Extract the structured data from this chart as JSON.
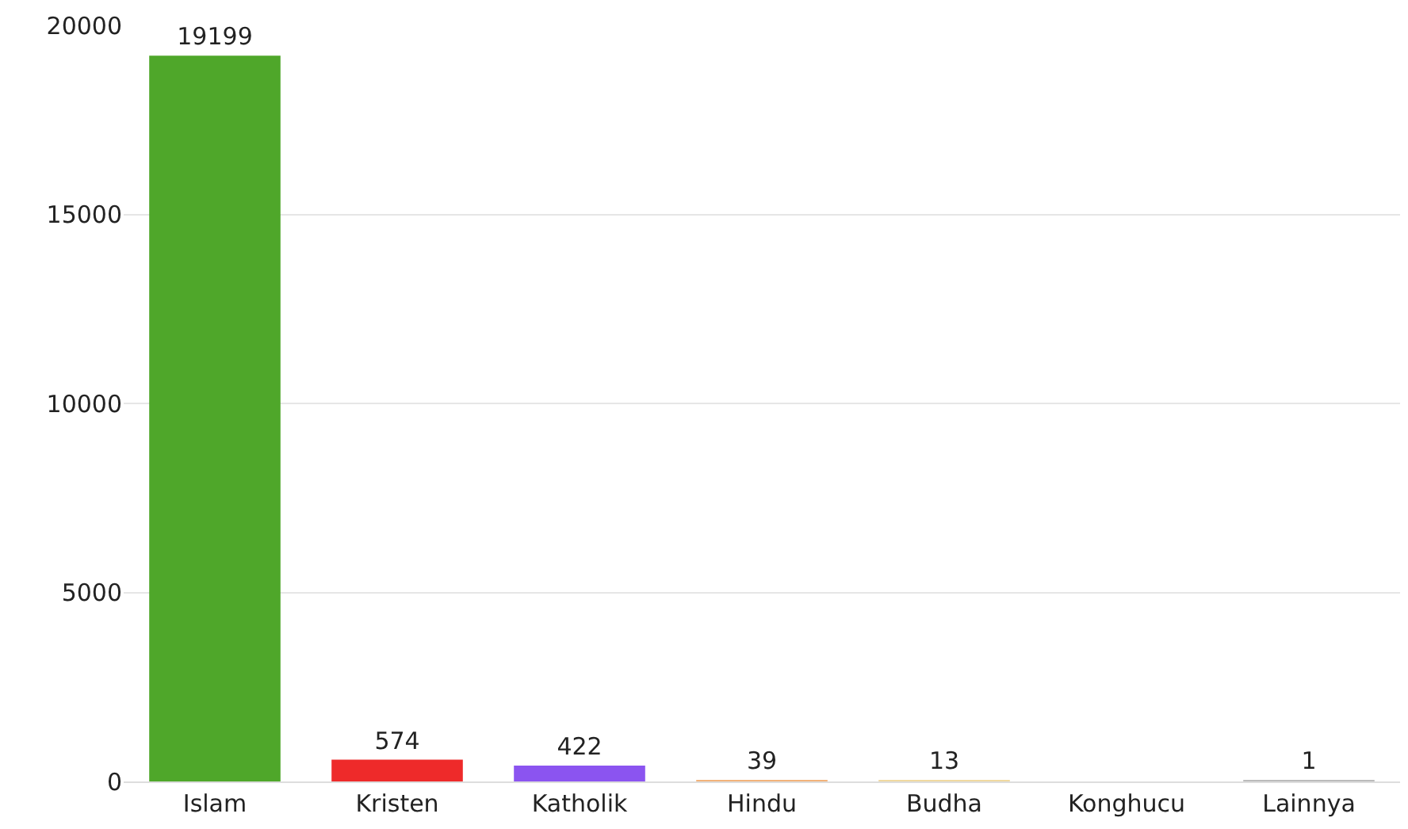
{
  "chart_data": {
    "type": "bar",
    "categories": [
      "Islam",
      "Kristen",
      "Katholik",
      "Hindu",
      "Budha",
      "Konghucu",
      "Lainnya"
    ],
    "values": [
      19199,
      574,
      422,
      39,
      13,
      0,
      1
    ],
    "colors": [
      "#4fa72a",
      "#ee2a2a",
      "#8b54f0",
      "#f2b27a",
      "#f0d9a0",
      "#cccccc",
      "#bbbbbb"
    ],
    "value_labels": [
      "19199",
      "574",
      "422",
      "39",
      "13",
      null,
      "1"
    ],
    "ylim": [
      0,
      20000
    ],
    "yticks": [
      0,
      5000,
      10000,
      15000,
      20000
    ],
    "grid": "y"
  }
}
